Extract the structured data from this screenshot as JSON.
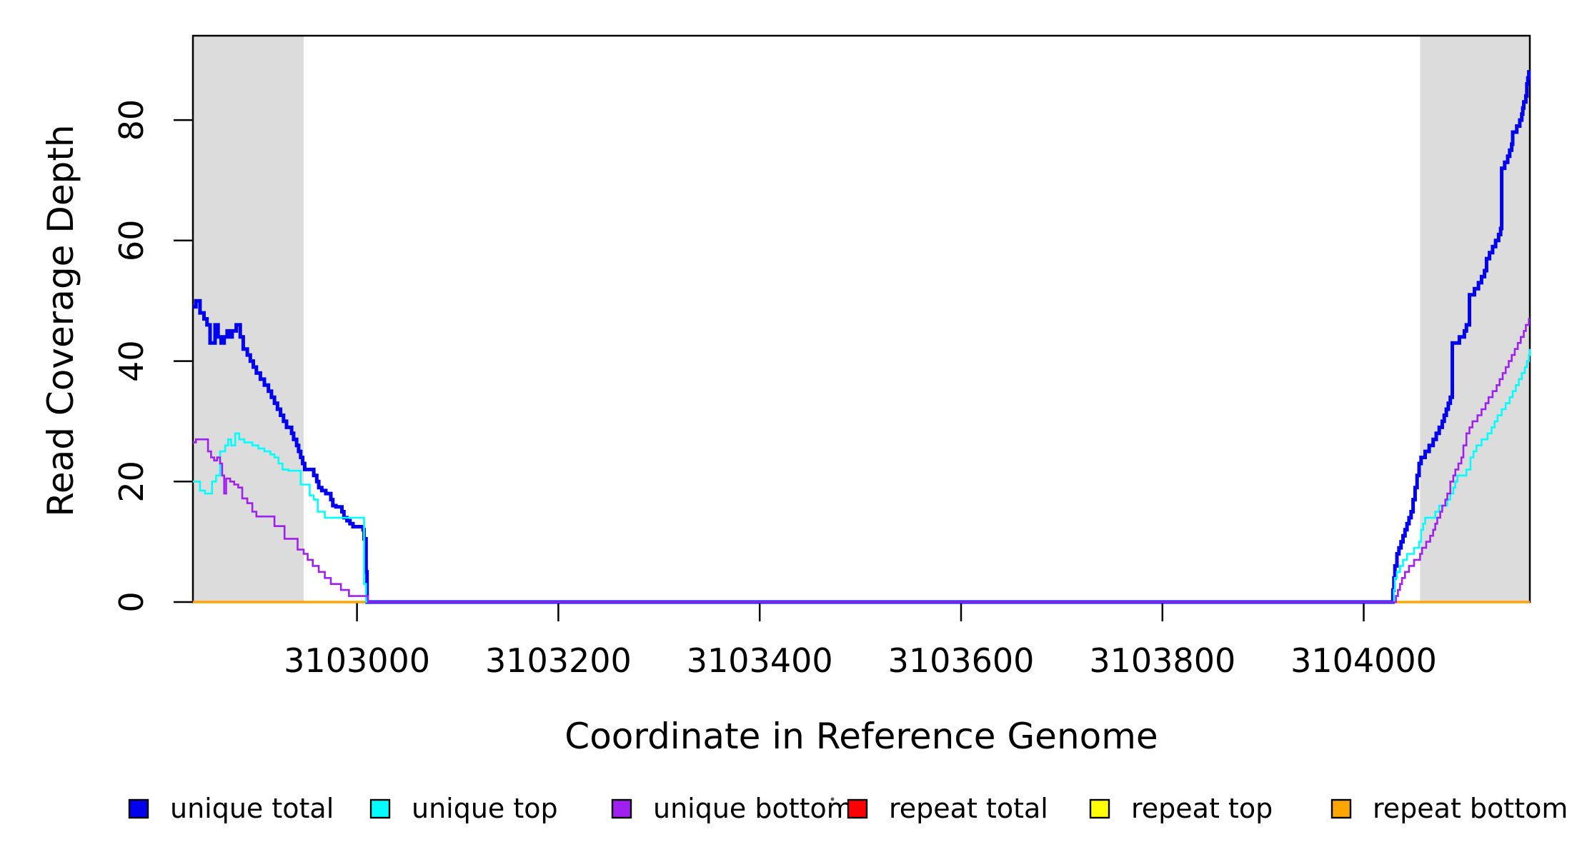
{
  "chart_data": {
    "type": "line",
    "step": true,
    "title": "",
    "xlabel": "Coordinate in Reference Genome",
    "ylabel": "Read Coverage Depth",
    "xlim": [
      3102837,
      3104165
    ],
    "ylim": [
      0,
      94
    ],
    "grid": false,
    "legend_position": "bottom",
    "background_color": "#FFFFFF",
    "plot_border_color": "#000000",
    "shaded_region_color": "#DCDCDC",
    "shaded_regions": [
      {
        "x0": 3102837,
        "x1": 3102947
      },
      {
        "x0": 3104056,
        "x1": 3104165
      }
    ],
    "xticks": {
      "values": [
        3103000,
        3103200,
        3103400,
        3103600,
        3103800,
        3104000
      ],
      "labels": [
        "3103000",
        "3103200",
        "3103400",
        "3103600",
        "3103800",
        "3104000"
      ]
    },
    "yticks": {
      "values": [
        0,
        20,
        40,
        60,
        80
      ],
      "labels": [
        "0",
        "20",
        "40",
        "60",
        "80"
      ]
    },
    "series": [
      {
        "name": "repeat total",
        "color": "#FF0000",
        "line_width": 2.6,
        "points": [
          [
            3102837,
            0
          ],
          [
            3104165,
            0
          ]
        ]
      },
      {
        "name": "repeat top",
        "color": "#FFFF00",
        "line_width": 2.6,
        "points": [
          [
            3102837,
            0
          ],
          [
            3104165,
            0
          ]
        ]
      },
      {
        "name": "repeat bottom",
        "color": "#FFA500",
        "line_width": 3.4,
        "points": [
          [
            3102837,
            0
          ],
          [
            3104165,
            0
          ]
        ]
      },
      {
        "name": "unique total",
        "color": "#0000EE",
        "line_width": 5,
        "points": [
          [
            3102837,
            49
          ],
          [
            3102840,
            50
          ],
          [
            3102844,
            48
          ],
          [
            3102848,
            47
          ],
          [
            3102851,
            46
          ],
          [
            3102854,
            43
          ],
          [
            3102859,
            46
          ],
          [
            3102862,
            44
          ],
          [
            3102865,
            43
          ],
          [
            3102868,
            44
          ],
          [
            3102871,
            45
          ],
          [
            3102873,
            44
          ],
          [
            3102876,
            45
          ],
          [
            3102880,
            46
          ],
          [
            3102884,
            44
          ],
          [
            3102887,
            42
          ],
          [
            3102891,
            41
          ],
          [
            3102894,
            40
          ],
          [
            3102897,
            39
          ],
          [
            3102900,
            38
          ],
          [
            3102904,
            37
          ],
          [
            3102908,
            36
          ],
          [
            3102912,
            35
          ],
          [
            3102915,
            34
          ],
          [
            3102918,
            33
          ],
          [
            3102921,
            32
          ],
          [
            3102924,
            31
          ],
          [
            3102927,
            30
          ],
          [
            3102930,
            29
          ],
          [
            3102935,
            28
          ],
          [
            3102937,
            27
          ],
          [
            3102940,
            26
          ],
          [
            3102942,
            25
          ],
          [
            3102944,
            24
          ],
          [
            3102946,
            23
          ],
          [
            3102948,
            22
          ],
          [
            3102957,
            21
          ],
          [
            3102960,
            20
          ],
          [
            3102962,
            19
          ],
          [
            3102965,
            18.5
          ],
          [
            3102969,
            18
          ],
          [
            3102974,
            17
          ],
          [
            3102976,
            16
          ],
          [
            3102979,
            15.8
          ],
          [
            3102985,
            15
          ],
          [
            3102987,
            14
          ],
          [
            3102990,
            13.5
          ],
          [
            3102993,
            13
          ],
          [
            3102996,
            12.5
          ],
          [
            3103006,
            12
          ],
          [
            3103007,
            10.5
          ],
          [
            3103009,
            5
          ],
          [
            3103010,
            0
          ],
          [
            3104029,
            2
          ],
          [
            3104030,
            4
          ],
          [
            3104031,
            6
          ],
          [
            3104033,
            8
          ],
          [
            3104035,
            9
          ],
          [
            3104037,
            10
          ],
          [
            3104039,
            11
          ],
          [
            3104041,
            12
          ],
          [
            3104043,
            13
          ],
          [
            3104045,
            14
          ],
          [
            3104047,
            15
          ],
          [
            3104049,
            17
          ],
          [
            3104051,
            19
          ],
          [
            3104053,
            21
          ],
          [
            3104055,
            23
          ],
          [
            3104057,
            24
          ],
          [
            3104061,
            25
          ],
          [
            3104065,
            26
          ],
          [
            3104069,
            27
          ],
          [
            3104072,
            28
          ],
          [
            3104075,
            29
          ],
          [
            3104078,
            30
          ],
          [
            3104080,
            31
          ],
          [
            3104082,
            32
          ],
          [
            3104084,
            33
          ],
          [
            3104086,
            34
          ],
          [
            3104088,
            43
          ],
          [
            3104095,
            44
          ],
          [
            3104100,
            45
          ],
          [
            3104102,
            46
          ],
          [
            3104105,
            51
          ],
          [
            3104110,
            52
          ],
          [
            3104114,
            53
          ],
          [
            3104117,
            54
          ],
          [
            3104120,
            55
          ],
          [
            3104122,
            57
          ],
          [
            3104125,
            58
          ],
          [
            3104128,
            59
          ],
          [
            3104131,
            60
          ],
          [
            3104134,
            61
          ],
          [
            3104136,
            62
          ],
          [
            3104137,
            72
          ],
          [
            3104140,
            73
          ],
          [
            3104143,
            74
          ],
          [
            3104145,
            75
          ],
          [
            3104147,
            76
          ],
          [
            3104148,
            78
          ],
          [
            3104152,
            79
          ],
          [
            3104155,
            80
          ],
          [
            3104157,
            81
          ],
          [
            3104158,
            82
          ],
          [
            3104159,
            83
          ],
          [
            3104161,
            84
          ],
          [
            3104162,
            86
          ],
          [
            3104163,
            87
          ],
          [
            3104164,
            88
          ],
          [
            3104165,
            88
          ]
        ]
      },
      {
        "name": "unique top",
        "color": "#00FFFF",
        "line_width": 2.6,
        "points": [
          [
            3102837,
            20
          ],
          [
            3102844,
            18.5
          ],
          [
            3102849,
            18
          ],
          [
            3102856,
            20
          ],
          [
            3102860,
            21
          ],
          [
            3102864,
            25
          ],
          [
            3102869,
            26
          ],
          [
            3102872,
            27
          ],
          [
            3102875,
            26
          ],
          [
            3102879,
            28
          ],
          [
            3102883,
            27
          ],
          [
            3102888,
            26.5
          ],
          [
            3102896,
            26
          ],
          [
            3102902,
            25.5
          ],
          [
            3102908,
            25
          ],
          [
            3102914,
            24.5
          ],
          [
            3102918,
            24
          ],
          [
            3102922,
            23
          ],
          [
            3102926,
            22
          ],
          [
            3102932,
            21.8
          ],
          [
            3102944,
            19.5
          ],
          [
            3102953,
            17.7
          ],
          [
            3102957,
            17
          ],
          [
            3102961,
            15
          ],
          [
            3102968,
            14
          ],
          [
            3103005,
            14
          ],
          [
            3103007,
            3
          ],
          [
            3103009,
            0
          ],
          [
            3104030,
            2
          ],
          [
            3104031,
            4
          ],
          [
            3104033,
            5
          ],
          [
            3104036,
            6
          ],
          [
            3104039,
            7
          ],
          [
            3104043,
            8
          ],
          [
            3104050,
            9
          ],
          [
            3104055,
            10
          ],
          [
            3104057,
            12
          ],
          [
            3104059,
            13
          ],
          [
            3104061,
            14
          ],
          [
            3104071,
            15
          ],
          [
            3104075,
            16
          ],
          [
            3104083,
            17
          ],
          [
            3104086,
            18
          ],
          [
            3104089,
            19
          ],
          [
            3104091,
            20
          ],
          [
            3104093,
            21
          ],
          [
            3104102,
            22
          ],
          [
            3104106,
            24
          ],
          [
            3104109,
            25
          ],
          [
            3104112,
            26
          ],
          [
            3104117,
            27
          ],
          [
            3104123,
            28
          ],
          [
            3104127,
            29
          ],
          [
            3104130,
            30
          ],
          [
            3104133,
            31
          ],
          [
            3104137,
            32
          ],
          [
            3104141,
            33
          ],
          [
            3104145,
            34
          ],
          [
            3104148,
            35
          ],
          [
            3104151,
            36
          ],
          [
            3104154,
            37
          ],
          [
            3104157,
            38
          ],
          [
            3104160,
            39
          ],
          [
            3104162,
            40
          ],
          [
            3104164,
            41
          ],
          [
            3104165,
            42
          ]
        ]
      },
      {
        "name": "unique bottom",
        "color": "#A020F0",
        "line_width": 2.6,
        "points": [
          [
            3102837,
            26.5
          ],
          [
            3102840,
            27
          ],
          [
            3102852,
            25
          ],
          [
            3102855,
            24
          ],
          [
            3102858,
            23.5
          ],
          [
            3102861,
            24
          ],
          [
            3102864,
            23
          ],
          [
            3102866,
            21
          ],
          [
            3102868,
            18
          ],
          [
            3102870,
            20.5
          ],
          [
            3102874,
            20
          ],
          [
            3102878,
            19.5
          ],
          [
            3102882,
            19
          ],
          [
            3102886,
            17.2
          ],
          [
            3102891,
            16.4
          ],
          [
            3102896,
            15
          ],
          [
            3102900,
            14.2
          ],
          [
            3102918,
            12.6
          ],
          [
            3102928,
            10.5
          ],
          [
            3102941,
            8.7
          ],
          [
            3102947,
            8
          ],
          [
            3102951,
            7
          ],
          [
            3102956,
            6
          ],
          [
            3102962,
            5
          ],
          [
            3102968,
            4
          ],
          [
            3102974,
            3
          ],
          [
            3102984,
            2
          ],
          [
            3102992,
            1
          ],
          [
            3103011,
            0
          ],
          [
            3104032,
            1
          ],
          [
            3104034,
            2
          ],
          [
            3104036,
            3
          ],
          [
            3104038,
            4
          ],
          [
            3104041,
            5
          ],
          [
            3104045,
            6
          ],
          [
            3104050,
            7
          ],
          [
            3104056,
            8
          ],
          [
            3104058,
            9
          ],
          [
            3104062,
            10
          ],
          [
            3104066,
            11
          ],
          [
            3104069,
            12
          ],
          [
            3104071,
            13
          ],
          [
            3104073,
            14
          ],
          [
            3104076,
            15
          ],
          [
            3104078,
            16
          ],
          [
            3104081,
            17
          ],
          [
            3104083,
            18
          ],
          [
            3104086,
            20
          ],
          [
            3104089,
            21
          ],
          [
            3104091,
            22
          ],
          [
            3104094,
            23
          ],
          [
            3104097,
            24
          ],
          [
            3104099,
            26
          ],
          [
            3104102,
            28
          ],
          [
            3104105,
            29
          ],
          [
            3104108,
            30
          ],
          [
            3104113,
            31
          ],
          [
            3104117,
            32
          ],
          [
            3104121,
            33
          ],
          [
            3104124,
            34
          ],
          [
            3104128,
            35
          ],
          [
            3104132,
            36
          ],
          [
            3104135,
            37
          ],
          [
            3104138,
            38
          ],
          [
            3104141,
            39
          ],
          [
            3104144,
            40
          ],
          [
            3104147,
            41
          ],
          [
            3104150,
            42
          ],
          [
            3104153,
            43
          ],
          [
            3104156,
            44
          ],
          [
            3104159,
            45
          ],
          [
            3104161,
            46
          ],
          [
            3104164,
            47
          ],
          [
            3104165,
            47
          ]
        ]
      }
    ]
  },
  "legend": {
    "items": [
      {
        "label": "unique total",
        "color": "#0000EE"
      },
      {
        "label": "unique top",
        "color": "#00FFFF"
      },
      {
        "label": "unique bottom",
        "color": "#A020F0"
      },
      {
        "label": "repeat total",
        "color": "#FF0000"
      },
      {
        "label": "repeat top",
        "color": "#FFFF00"
      },
      {
        "label": "repeat bottom",
        "color": "#FFA500"
      }
    ]
  }
}
